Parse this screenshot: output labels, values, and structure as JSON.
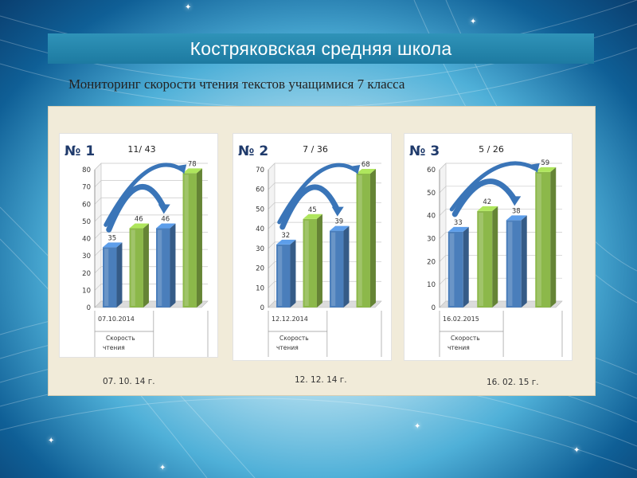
{
  "header": {
    "title": "Костряковская средняя школа",
    "subtitle": "Мониторинг скорости чтения текстов учащимися 7 класса"
  },
  "colors": {
    "title_bar": "#1d7aa1",
    "bar_blue": "#4a7ebb",
    "bar_green": "#8cb84a",
    "arrow_blue": "#3a75b8",
    "panel_bg": "#f1ebd9"
  },
  "captions": [
    "07. 10. 14 г.",
    "12. 12. 14 г.",
    "16. 02. 15 г."
  ],
  "chart_data": [
    {
      "type": "bar",
      "number_label": "№ 1",
      "ratio": "11/ 43",
      "ylim": [
        0,
        80
      ],
      "yticks": [
        "0",
        "10",
        "20",
        "30",
        "40",
        "50",
        "60",
        "70",
        "80"
      ],
      "values": [
        35,
        46,
        46,
        78
      ],
      "value_labels": [
        "35",
        "46",
        "46",
        "78"
      ],
      "colors": [
        "#4a7ebb",
        "#8cb84a",
        "#4a7ebb",
        "#8cb84a"
      ],
      "date_label": "07.10.2014",
      "category_label_line1": "Скорость",
      "category_label_line2": "чтения"
    },
    {
      "type": "bar",
      "number_label": "№ 2",
      "ratio": "7 / 36",
      "ylim": [
        0,
        70
      ],
      "yticks": [
        "0",
        "10",
        "20",
        "30",
        "40",
        "50",
        "60",
        "70"
      ],
      "values": [
        32,
        45,
        39,
        68
      ],
      "value_labels": [
        "32",
        "45",
        "39",
        "68"
      ],
      "colors": [
        "#4a7ebb",
        "#8cb84a",
        "#4a7ebb",
        "#8cb84a"
      ],
      "date_label": "12.12.2014",
      "category_label_line1": "Скорость",
      "category_label_line2": "чтения"
    },
    {
      "type": "bar",
      "number_label": "№ 3",
      "ratio": "5 / 26",
      "ylim": [
        0,
        60
      ],
      "yticks": [
        "0",
        "10",
        "20",
        "30",
        "40",
        "50",
        "60"
      ],
      "values": [
        33,
        42,
        38,
        59
      ],
      "value_labels": [
        "33",
        "42",
        "38",
        "59"
      ],
      "colors": [
        "#4a7ebb",
        "#8cb84a",
        "#4a7ebb",
        "#8cb84a"
      ],
      "date_label": "16.02.2015",
      "category_label_line1": "Скорость",
      "category_label_line2": "чтения"
    }
  ]
}
